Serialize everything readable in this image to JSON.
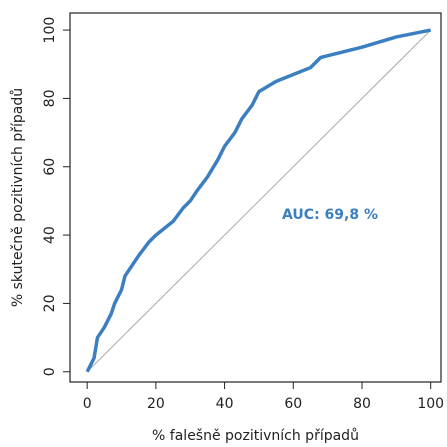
{
  "chart_data": {
    "type": "line",
    "x_label": "% falešně pozitivních případů",
    "y_label": "% skutečně pozitivních případů",
    "annotation": "AUC: 69,8 %",
    "x": [
      0,
      1,
      2,
      3,
      5,
      7,
      8,
      10,
      11,
      13,
      15,
      18,
      20,
      25,
      28,
      30,
      32,
      35,
      38,
      40,
      43,
      45,
      48,
      50,
      55,
      60,
      65,
      68,
      80,
      90,
      100
    ],
    "series": [
      {
        "color": "#3b7fc0",
        "values": [
          0,
          2,
          4,
          10,
          13,
          17,
          20,
          24,
          28,
          31,
          34,
          38,
          40,
          44,
          48,
          50,
          53,
          57,
          62,
          66,
          70,
          74,
          78,
          82,
          85,
          87,
          89,
          92,
          95,
          98,
          100
        ]
      }
    ],
    "xlim": [
      -5,
      103
    ],
    "ylim": [
      -3,
      105
    ],
    "xticks": [
      0,
      20,
      40,
      60,
      80,
      100
    ],
    "yticks": [
      0,
      20,
      40,
      60,
      80,
      100
    ]
  }
}
